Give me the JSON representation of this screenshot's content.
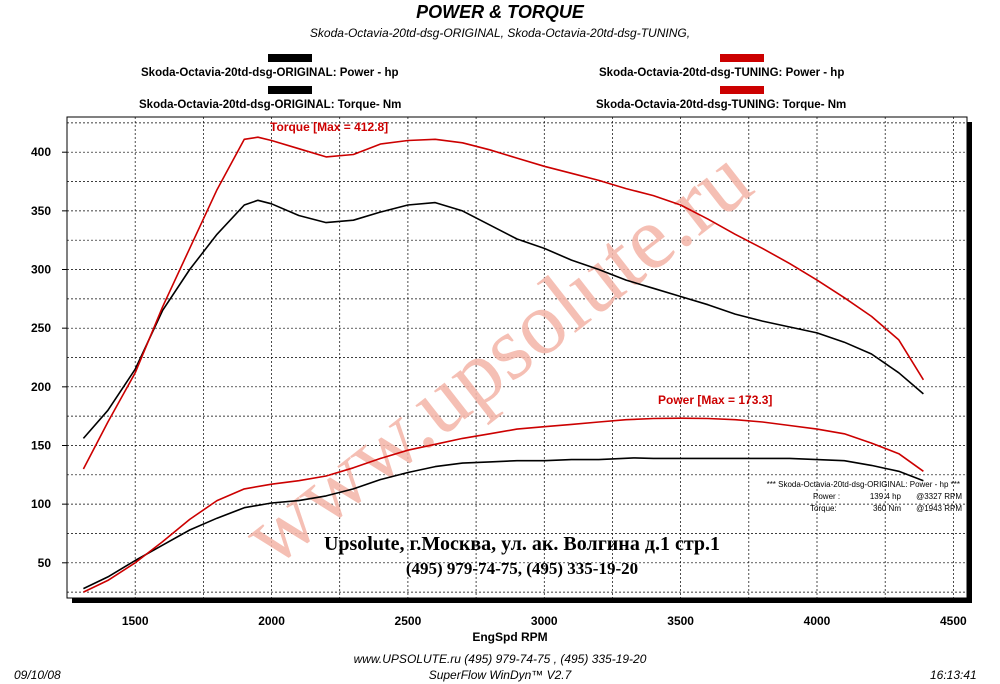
{
  "header": {
    "title": "POWER & TORQUE",
    "subtitle": "Skoda-Octavia-20td-dsg-ORIGINAL, Skoda-Octavia-20td-dsg-TUNING,"
  },
  "legend": {
    "orig_power": "Skoda-Octavia-20td-dsg-ORIGINAL: Power -  hp",
    "orig_torque": "Skoda-Octavia-20td-dsg-ORIGINAL: Torque-  Nm",
    "tuned_power": "Skoda-Octavia-20td-dsg-TUNING: Power -  hp",
    "tuned_torque": "Skoda-Octavia-20td-dsg-TUNING: Torque-  Nm"
  },
  "colors": {
    "original": "#000000",
    "tuning": "#cc0000",
    "watermark": "#f4b5a8"
  },
  "annotations": {
    "torque_label": "Torque [Max = 412.8]",
    "power_label": "Power  [Max = 173.3]",
    "info_header": "*** Skoda-Octavia-20td-dsg-ORIGINAL: Power - hp ***",
    "info_power_name": "Power :",
    "info_power_val": "139.4 hp",
    "info_power_rpm": "@3327 RPM",
    "info_torque_name": "Torque:",
    "info_torque_val": "360 Nm",
    "info_torque_rpm": "@1943 RPM",
    "company_line1": "Upsolute, г.Москва, ул. ак. Волгина д.1 стр.1",
    "company_line2": "(495) 979-74-75, (495) 335-19-20",
    "watermark": "www.upsolute.ru"
  },
  "footer": {
    "date": "09/10/08",
    "contact": "www.UPSOLUTE.ru  (495) 979-74-75 , (495) 335-19-20",
    "software": "SuperFlow WinDyn™ V2.7",
    "time": "16:13:41"
  },
  "chart_data": {
    "type": "line",
    "title": "POWER & TORQUE",
    "xlabel": "EngSpd  RPM",
    "ylabel": "",
    "xlim": [
      1250,
      4550
    ],
    "ylim": [
      20,
      430
    ],
    "x_ticks": [
      1500,
      2000,
      2500,
      3000,
      3500,
      4000,
      4500
    ],
    "y_ticks": [
      50,
      100,
      150,
      200,
      250,
      300,
      350,
      400
    ],
    "grid": true,
    "series": [
      {
        "name": "Skoda-Octavia-20td-dsg-ORIGINAL: Torque-  Nm",
        "color": "#000000",
        "points": [
          [
            1310,
            156
          ],
          [
            1400,
            180
          ],
          [
            1500,
            215
          ],
          [
            1600,
            265
          ],
          [
            1700,
            300
          ],
          [
            1800,
            330
          ],
          [
            1900,
            355
          ],
          [
            1950,
            359
          ],
          [
            2000,
            356
          ],
          [
            2100,
            346
          ],
          [
            2200,
            340
          ],
          [
            2300,
            342
          ],
          [
            2400,
            349
          ],
          [
            2500,
            355
          ],
          [
            2600,
            357
          ],
          [
            2700,
            350
          ],
          [
            2800,
            338
          ],
          [
            2900,
            326
          ],
          [
            3000,
            318
          ],
          [
            3100,
            308
          ],
          [
            3200,
            300
          ],
          [
            3300,
            291
          ],
          [
            3400,
            284
          ],
          [
            3500,
            277
          ],
          [
            3600,
            270
          ],
          [
            3700,
            262
          ],
          [
            3800,
            256
          ],
          [
            3900,
            251
          ],
          [
            4000,
            246
          ],
          [
            4100,
            238
          ],
          [
            4200,
            228
          ],
          [
            4300,
            212
          ],
          [
            4390,
            194
          ]
        ]
      },
      {
        "name": "Skoda-Octavia-20td-dsg-TUNING: Torque-  Nm",
        "color": "#cc0000",
        "points": [
          [
            1310,
            130
          ],
          [
            1400,
            170
          ],
          [
            1500,
            212
          ],
          [
            1600,
            268
          ],
          [
            1700,
            318
          ],
          [
            1800,
            368
          ],
          [
            1900,
            411
          ],
          [
            1950,
            412.8
          ],
          [
            2000,
            410
          ],
          [
            2100,
            403
          ],
          [
            2200,
            396
          ],
          [
            2300,
            398
          ],
          [
            2400,
            407
          ],
          [
            2500,
            410
          ],
          [
            2600,
            411
          ],
          [
            2700,
            408
          ],
          [
            2800,
            402
          ],
          [
            2900,
            395
          ],
          [
            3000,
            388
          ],
          [
            3100,
            382
          ],
          [
            3200,
            376
          ],
          [
            3300,
            369
          ],
          [
            3400,
            363
          ],
          [
            3500,
            355
          ],
          [
            3600,
            343
          ],
          [
            3700,
            330
          ],
          [
            3800,
            318
          ],
          [
            3900,
            305
          ],
          [
            4000,
            291
          ],
          [
            4100,
            276
          ],
          [
            4200,
            260
          ],
          [
            4300,
            240
          ],
          [
            4390,
            206
          ]
        ]
      },
      {
        "name": "Skoda-Octavia-20td-dsg-ORIGINAL: Power -  hp",
        "color": "#000000",
        "points": [
          [
            1310,
            28
          ],
          [
            1400,
            38
          ],
          [
            1500,
            52
          ],
          [
            1600,
            65
          ],
          [
            1700,
            78
          ],
          [
            1800,
            88
          ],
          [
            1900,
            97
          ],
          [
            2000,
            101
          ],
          [
            2100,
            103
          ],
          [
            2200,
            107
          ],
          [
            2300,
            113
          ],
          [
            2400,
            121
          ],
          [
            2500,
            127
          ],
          [
            2600,
            132
          ],
          [
            2700,
            135
          ],
          [
            2800,
            136
          ],
          [
            2900,
            137
          ],
          [
            3000,
            137
          ],
          [
            3100,
            138
          ],
          [
            3200,
            138
          ],
          [
            3327,
            139.4
          ],
          [
            3400,
            139
          ],
          [
            3500,
            139
          ],
          [
            3600,
            139
          ],
          [
            3700,
            139
          ],
          [
            3800,
            139
          ],
          [
            3900,
            139
          ],
          [
            4000,
            138
          ],
          [
            4100,
            137
          ],
          [
            4200,
            133
          ],
          [
            4300,
            128
          ],
          [
            4390,
            120
          ]
        ]
      },
      {
        "name": "Skoda-Octavia-20td-dsg-TUNING: Power -  hp",
        "color": "#cc0000",
        "points": [
          [
            1310,
            25
          ],
          [
            1400,
            35
          ],
          [
            1500,
            50
          ],
          [
            1600,
            68
          ],
          [
            1700,
            87
          ],
          [
            1800,
            103
          ],
          [
            1900,
            113
          ],
          [
            2000,
            117
          ],
          [
            2100,
            120
          ],
          [
            2200,
            124
          ],
          [
            2300,
            131
          ],
          [
            2400,
            139
          ],
          [
            2500,
            146
          ],
          [
            2600,
            151
          ],
          [
            2700,
            156
          ],
          [
            2800,
            160
          ],
          [
            2900,
            164
          ],
          [
            3000,
            166
          ],
          [
            3100,
            168
          ],
          [
            3200,
            170
          ],
          [
            3300,
            172
          ],
          [
            3400,
            173
          ],
          [
            3500,
            173.3
          ],
          [
            3600,
            173
          ],
          [
            3700,
            172
          ],
          [
            3800,
            170
          ],
          [
            3900,
            167
          ],
          [
            4000,
            164
          ],
          [
            4100,
            160
          ],
          [
            4200,
            152
          ],
          [
            4300,
            143
          ],
          [
            4390,
            128
          ]
        ]
      }
    ]
  }
}
